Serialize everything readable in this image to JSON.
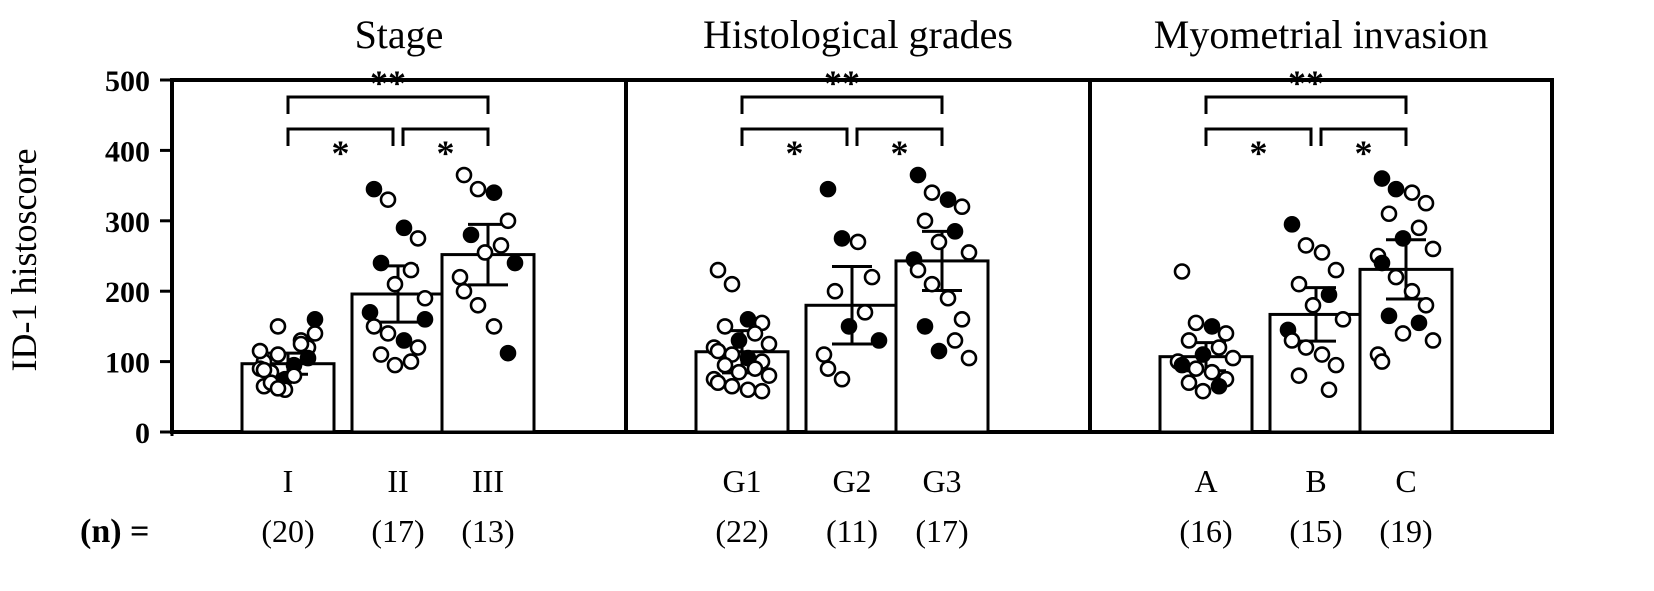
{
  "figure": {
    "ylabel": "ID-1 histoscore",
    "n_prefix": "(n) ="
  },
  "chart_data": [
    {
      "type": "bar",
      "title": "Stage",
      "categories": [
        "I",
        "II",
        "III"
      ],
      "n_labels": [
        "(20)",
        "(17)",
        "(13)"
      ],
      "values": [
        97,
        196,
        252
      ],
      "sd": [
        15,
        40,
        43
      ],
      "ylabel": "ID-1 histoscore",
      "ylim": [
        0,
        500
      ],
      "yticks": [
        0,
        100,
        200,
        300,
        400,
        500
      ],
      "significance": [
        {
          "from": 0,
          "to": 1,
          "label": "*"
        },
        {
          "from": 1,
          "to": 2,
          "label": "*"
        },
        {
          "from": 0,
          "to": 2,
          "label": "**"
        }
      ],
      "points": [
        [
          [
            100,
            "o"
          ],
          [
            110,
            "o"
          ],
          [
            95,
            "f"
          ],
          [
            120,
            "o"
          ],
          [
            85,
            "o"
          ],
          [
            130,
            "o"
          ],
          [
            75,
            "f"
          ],
          [
            140,
            "o"
          ],
          [
            90,
            "o"
          ],
          [
            65,
            "o"
          ],
          [
            150,
            "o"
          ],
          [
            80,
            "o"
          ],
          [
            105,
            "f"
          ],
          [
            70,
            "o"
          ],
          [
            125,
            "o"
          ],
          [
            60,
            "o"
          ],
          [
            160,
            "f"
          ],
          [
            115,
            "o"
          ],
          [
            88,
            "o"
          ],
          [
            62,
            "o"
          ]
        ],
        [
          [
            345,
            "f"
          ],
          [
            330,
            "o"
          ],
          [
            290,
            "f"
          ],
          [
            275,
            "o"
          ],
          [
            240,
            "f"
          ],
          [
            230,
            "o"
          ],
          [
            210,
            "o"
          ],
          [
            190,
            "o"
          ],
          [
            170,
            "f"
          ],
          [
            150,
            "o"
          ],
          [
            140,
            "o"
          ],
          [
            130,
            "f"
          ],
          [
            120,
            "o"
          ],
          [
            110,
            "o"
          ],
          [
            100,
            "o"
          ],
          [
            95,
            "o"
          ],
          [
            160,
            "f"
          ]
        ],
        [
          [
            365,
            "o"
          ],
          [
            345,
            "o"
          ],
          [
            340,
            "f"
          ],
          [
            300,
            "o"
          ],
          [
            280,
            "f"
          ],
          [
            265,
            "o"
          ],
          [
            255,
            "o"
          ],
          [
            240,
            "f"
          ],
          [
            220,
            "o"
          ],
          [
            200,
            "o"
          ],
          [
            180,
            "o"
          ],
          [
            150,
            "o"
          ],
          [
            112,
            "f"
          ]
        ]
      ]
    },
    {
      "type": "bar",
      "title": "Histological grades",
      "categories": [
        "G1",
        "G2",
        "G3"
      ],
      "n_labels": [
        "(22)",
        "(11)",
        "(17)"
      ],
      "values": [
        114,
        180,
        243
      ],
      "sd": [
        30,
        55,
        42
      ],
      "ylabel": "ID-1 histoscore",
      "ylim": [
        0,
        500
      ],
      "yticks": [
        0,
        100,
        200,
        300,
        400,
        500
      ],
      "significance": [
        {
          "from": 0,
          "to": 1,
          "label": "*"
        },
        {
          "from": 1,
          "to": 2,
          "label": "*"
        },
        {
          "from": 0,
          "to": 2,
          "label": "**"
        }
      ],
      "points": [
        [
          [
            230,
            "o"
          ],
          [
            210,
            "o"
          ],
          [
            160,
            "f"
          ],
          [
            155,
            "o"
          ],
          [
            150,
            "o"
          ],
          [
            140,
            "o"
          ],
          [
            130,
            "f"
          ],
          [
            125,
            "o"
          ],
          [
            120,
            "o"
          ],
          [
            115,
            "o"
          ],
          [
            110,
            "o"
          ],
          [
            105,
            "f"
          ],
          [
            100,
            "o"
          ],
          [
            95,
            "o"
          ],
          [
            90,
            "o"
          ],
          [
            85,
            "o"
          ],
          [
            80,
            "o"
          ],
          [
            75,
            "o"
          ],
          [
            70,
            "o"
          ],
          [
            65,
            "o"
          ],
          [
            60,
            "o"
          ],
          [
            58,
            "o"
          ]
        ],
        [
          [
            345,
            "f"
          ],
          [
            275,
            "f"
          ],
          [
            270,
            "o"
          ],
          [
            220,
            "o"
          ],
          [
            200,
            "o"
          ],
          [
            170,
            "o"
          ],
          [
            150,
            "f"
          ],
          [
            130,
            "f"
          ],
          [
            110,
            "o"
          ],
          [
            90,
            "o"
          ],
          [
            75,
            "o"
          ]
        ],
        [
          [
            365,
            "f"
          ],
          [
            340,
            "o"
          ],
          [
            330,
            "f"
          ],
          [
            320,
            "o"
          ],
          [
            300,
            "o"
          ],
          [
            285,
            "f"
          ],
          [
            270,
            "o"
          ],
          [
            255,
            "o"
          ],
          [
            245,
            "f"
          ],
          [
            230,
            "o"
          ],
          [
            210,
            "o"
          ],
          [
            190,
            "o"
          ],
          [
            160,
            "o"
          ],
          [
            150,
            "f"
          ],
          [
            130,
            "o"
          ],
          [
            115,
            "f"
          ],
          [
            105,
            "o"
          ]
        ]
      ]
    },
    {
      "type": "bar",
      "title": "Myometrial invasion",
      "categories": [
        "A",
        "B",
        "C"
      ],
      "n_labels": [
        "(16)",
        "(15)",
        "(19)"
      ],
      "values": [
        107,
        167,
        231
      ],
      "sd": [
        20,
        38,
        42
      ],
      "ylabel": "ID-1 histoscore",
      "ylim": [
        0,
        500
      ],
      "yticks": [
        0,
        100,
        200,
        300,
        400,
        500
      ],
      "significance": [
        {
          "from": 0,
          "to": 1,
          "label": "*"
        },
        {
          "from": 1,
          "to": 2,
          "label": "*"
        },
        {
          "from": 0,
          "to": 2,
          "label": "**"
        }
      ],
      "points": [
        [
          [
            228,
            "o"
          ],
          [
            155,
            "o"
          ],
          [
            150,
            "f"
          ],
          [
            140,
            "o"
          ],
          [
            130,
            "o"
          ],
          [
            120,
            "o"
          ],
          [
            110,
            "f"
          ],
          [
            105,
            "o"
          ],
          [
            100,
            "o"
          ],
          [
            95,
            "f"
          ],
          [
            90,
            "o"
          ],
          [
            85,
            "o"
          ],
          [
            75,
            "o"
          ],
          [
            70,
            "o"
          ],
          [
            65,
            "f"
          ],
          [
            58,
            "o"
          ]
        ],
        [
          [
            295,
            "f"
          ],
          [
            265,
            "o"
          ],
          [
            255,
            "o"
          ],
          [
            230,
            "o"
          ],
          [
            210,
            "o"
          ],
          [
            195,
            "f"
          ],
          [
            180,
            "o"
          ],
          [
            160,
            "o"
          ],
          [
            145,
            "f"
          ],
          [
            130,
            "o"
          ],
          [
            120,
            "o"
          ],
          [
            110,
            "o"
          ],
          [
            95,
            "o"
          ],
          [
            80,
            "o"
          ],
          [
            60,
            "o"
          ]
        ],
        [
          [
            360,
            "f"
          ],
          [
            345,
            "f"
          ],
          [
            340,
            "o"
          ],
          [
            325,
            "o"
          ],
          [
            310,
            "o"
          ],
          [
            290,
            "o"
          ],
          [
            275,
            "f"
          ],
          [
            260,
            "o"
          ],
          [
            250,
            "o"
          ],
          [
            240,
            "f"
          ],
          [
            220,
            "o"
          ],
          [
            200,
            "o"
          ],
          [
            180,
            "o"
          ],
          [
            165,
            "f"
          ],
          [
            155,
            "f"
          ],
          [
            140,
            "o"
          ],
          [
            130,
            "o"
          ],
          [
            110,
            "o"
          ],
          [
            100,
            "o"
          ]
        ]
      ]
    }
  ]
}
